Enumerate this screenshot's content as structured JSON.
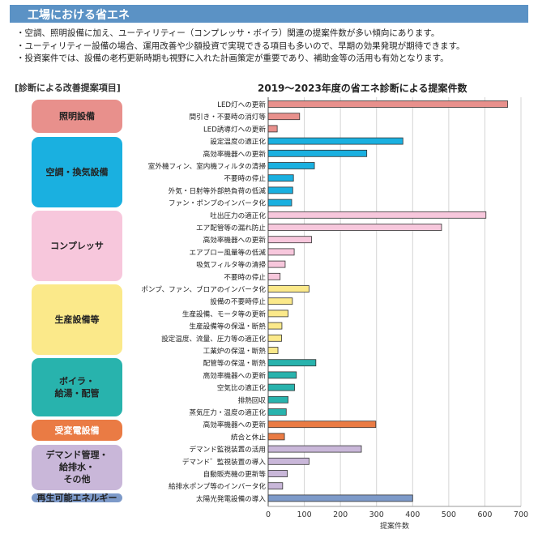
{
  "header": {
    "title": "工場における省エネ"
  },
  "bullets": [
    "・空調、照明設備に加え、ユーティリティー（コンプレッサ・ボイラ）関連の提案件数が多い傾向にあります。",
    "・ユーティリティー設備の場合、運用改善や少額投資で実現できる項目も多いので、早期の効果発現が期待できます。",
    "・投資案件では、設備の老朽更新時期も視野に入れた計画策定が重要であり、補助金等の活用も有効となります。"
  ],
  "left_title": "[診断による改善提案項目]",
  "categories": [
    {
      "label": "照明設備",
      "color": "#e8908c",
      "text_color": "#222222",
      "count": 3
    },
    {
      "label": "空調・換気設備",
      "color": "#1ab0e0",
      "text_color": "#222222",
      "count": 6
    },
    {
      "label": "コンプレッサ",
      "color": "#f7c7dc",
      "text_color": "#222222",
      "count": 6
    },
    {
      "label": "生産設備等",
      "color": "#fbe98a",
      "text_color": "#222222",
      "count": 6
    },
    {
      "label": "ボイラ・\n給湯・配管",
      "color": "#28b3ad",
      "text_color": "#222222",
      "count": 5
    },
    {
      "label": "受変電設備",
      "color": "#ea7b44",
      "text_color": "#ffffff",
      "count": 2
    },
    {
      "label": "デマンド管理・\n給排水・\nその他",
      "color": "#c9b7d9",
      "text_color": "#222222",
      "count": 4
    },
    {
      "label": "再生可能エネルギー",
      "color": "#7d9ac9",
      "text_color": "#222222",
      "count": 1
    }
  ],
  "chart_data": {
    "type": "bar",
    "orientation": "horizontal",
    "title": "2019～2023年度の省エネ診断による提案件数",
    "xlabel": "提案件数",
    "ylabel": "",
    "xlim": [
      0,
      700
    ],
    "x_ticks": [
      0,
      100,
      200,
      300,
      400,
      500,
      600,
      700
    ],
    "grid": true,
    "categories": [
      "LED灯への更新",
      "間引き・不要時の消灯等",
      "LED誘導灯への更新",
      "設定温度の適正化",
      "高効率機器への更新",
      "室外機フィン、室内機フィルタの清掃",
      "不要時の停止",
      "外気・日射等外部熱負荷の低減",
      "ファン・ポンプのインバータ化",
      "吐出圧力の適正化",
      "エア配管等の漏れ防止",
      "高効率機器への更新",
      "エアブロー風量等の低減",
      "吸気フィルタ等の清掃",
      "不要時の停止",
      "ポンプ、ファン、ブロアのインバータ化",
      "設備の不要時停止",
      "生産設備、モータ等の更新",
      "生産設備等の保温・断熱",
      "設定温度、流量、圧力等の適正化",
      "工業炉の保温・断熱",
      "配管等の保温・断熱",
      "高効率機器への更新",
      "空気比の適正化",
      "排熱回収",
      "蒸気圧力・温度の適正化",
      "高効率機器への更新",
      "統合と休止",
      "デマンド監視装置の活用",
      "デマンド゛監視装置の導入",
      "自動販売機の更新等",
      "給排水ポンプ等のインバータ化",
      "太陽光発電設備の導入"
    ],
    "values": [
      663,
      87,
      25,
      373,
      273,
      128,
      70,
      68,
      65,
      603,
      480,
      120,
      72,
      47,
      33,
      113,
      67,
      55,
      38,
      37,
      27,
      132,
      78,
      73,
      55,
      50,
      298,
      45,
      258,
      113,
      53,
      40,
      400
    ]
  }
}
